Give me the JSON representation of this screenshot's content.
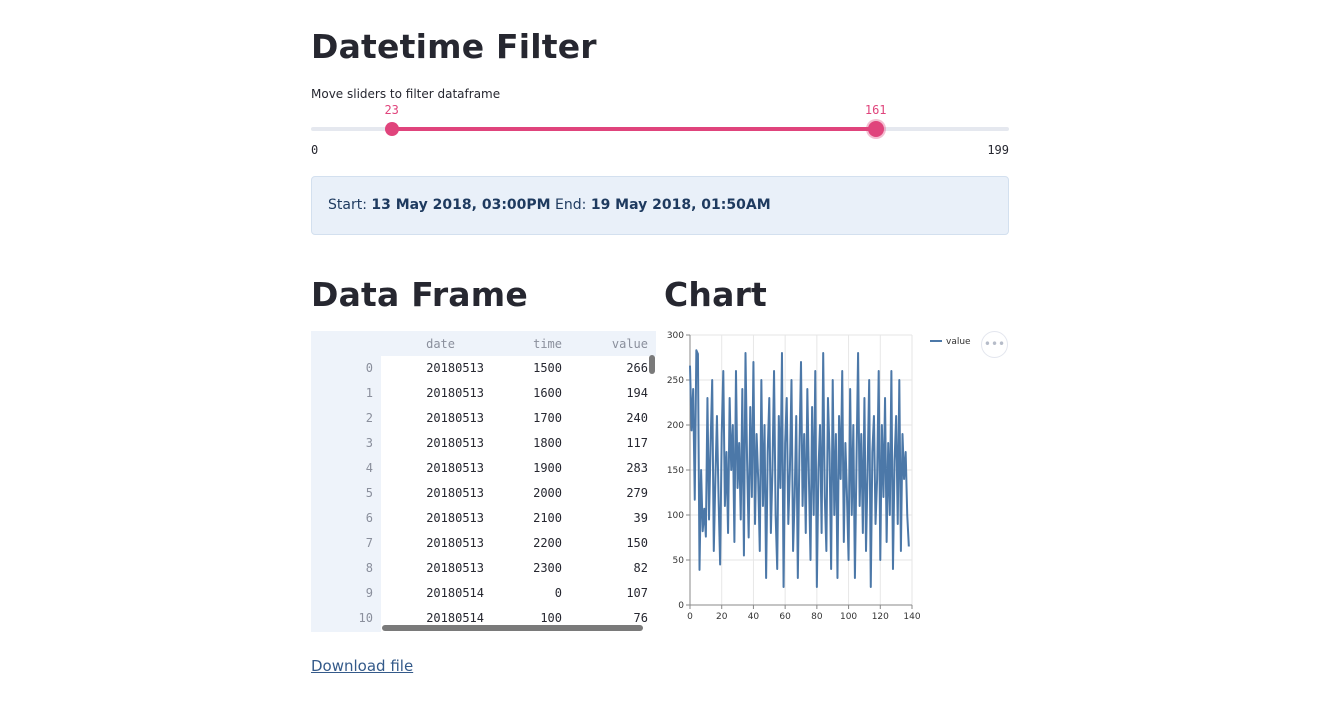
{
  "page": {
    "title": "Datetime Filter",
    "caption": "Move sliders to filter dataframe",
    "download_label": "Download file"
  },
  "slider": {
    "min": 0,
    "max": 199,
    "low": 23,
    "high": 161,
    "min_label": "0",
    "max_label": "199",
    "low_label": "23",
    "high_label": "161",
    "accent_color": "#e0447c"
  },
  "info": {
    "start_label": "Start:",
    "start_value": "13 May 2018, 03:00PM",
    "end_label": "End:",
    "end_value": "19 May 2018, 01:50AM"
  },
  "dataframe": {
    "heading": "Data Frame",
    "columns": [
      "date",
      "time",
      "value"
    ],
    "rows": [
      {
        "index": "0",
        "date": "20180513",
        "time": "1500",
        "value": "266"
      },
      {
        "index": "1",
        "date": "20180513",
        "time": "1600",
        "value": "194"
      },
      {
        "index": "2",
        "date": "20180513",
        "time": "1700",
        "value": "240"
      },
      {
        "index": "3",
        "date": "20180513",
        "time": "1800",
        "value": "117"
      },
      {
        "index": "4",
        "date": "20180513",
        "time": "1900",
        "value": "283"
      },
      {
        "index": "5",
        "date": "20180513",
        "time": "2000",
        "value": "279"
      },
      {
        "index": "6",
        "date": "20180513",
        "time": "2100",
        "value": "39"
      },
      {
        "index": "7",
        "date": "20180513",
        "time": "2200",
        "value": "150"
      },
      {
        "index": "8",
        "date": "20180513",
        "time": "2300",
        "value": "82"
      },
      {
        "index": "9",
        "date": "20180514",
        "time": "0",
        "value": "107"
      },
      {
        "index": "10",
        "date": "20180514",
        "time": "100",
        "value": "76"
      }
    ]
  },
  "chart": {
    "heading": "Chart",
    "menu_icon": "more-horizontal-icon",
    "menu_glyph": "•••"
  },
  "chart_data": {
    "type": "line",
    "title": "",
    "xlabel": "",
    "ylabel": "",
    "xlim": [
      0,
      140
    ],
    "ylim": [
      0,
      300
    ],
    "xticks": [
      0,
      20,
      40,
      60,
      80,
      100,
      120,
      140
    ],
    "yticks": [
      0,
      50,
      100,
      150,
      200,
      250,
      300
    ],
    "grid": true,
    "legend": "top-right",
    "series": [
      {
        "name": "value",
        "color": "#4c78a8",
        "x": [
          0,
          1,
          2,
          3,
          4,
          5,
          6,
          7,
          8,
          9,
          10,
          11,
          12,
          13,
          14,
          15,
          16,
          17,
          18,
          19,
          20,
          21,
          22,
          23,
          24,
          25,
          26,
          27,
          28,
          29,
          30,
          31,
          32,
          33,
          34,
          35,
          36,
          37,
          38,
          39,
          40,
          41,
          42,
          43,
          44,
          45,
          46,
          47,
          48,
          49,
          50,
          51,
          52,
          53,
          54,
          55,
          56,
          57,
          58,
          59,
          60,
          61,
          62,
          63,
          64,
          65,
          66,
          67,
          68,
          69,
          70,
          71,
          72,
          73,
          74,
          75,
          76,
          77,
          78,
          79,
          80,
          81,
          82,
          83,
          84,
          85,
          86,
          87,
          88,
          89,
          90,
          91,
          92,
          93,
          94,
          95,
          96,
          97,
          98,
          99,
          100,
          101,
          102,
          103,
          104,
          105,
          106,
          107,
          108,
          109,
          110,
          111,
          112,
          113,
          114,
          115,
          116,
          117,
          118,
          119,
          120,
          121,
          122,
          123,
          124,
          125,
          126,
          127,
          128,
          129,
          130,
          131,
          132,
          133,
          134,
          135,
          136,
          137,
          138
        ],
        "values": [
          266,
          194,
          240,
          117,
          283,
          279,
          39,
          150,
          82,
          107,
          76,
          230,
          95,
          180,
          250,
          60,
          140,
          210,
          120,
          45,
          190,
          260,
          110,
          170,
          80,
          230,
          150,
          200,
          70,
          260,
          130,
          180,
          95,
          240,
          55,
          280,
          160,
          75,
          220,
          120,
          270,
          90,
          190,
          140,
          60,
          250,
          110,
          200,
          30,
          170,
          230,
          80,
          150,
          260,
          100,
          40,
          210,
          130,
          280,
          20,
          180,
          230,
          90,
          150,
          250,
          60,
          120,
          210,
          30,
          170,
          270,
          110,
          190,
          80,
          240,
          140,
          50,
          220,
          100,
          260,
          20,
          150,
          200,
          80,
          280,
          120,
          60,
          230,
          170,
          40,
          250,
          100,
          190,
          30,
          210,
          140,
          260,
          70,
          180,
          120,
          50,
          240,
          100,
          200,
          30,
          160,
          280,
          110,
          190,
          80,
          230,
          60,
          150,
          250,
          20,
          170,
          210,
          90,
          140,
          260,
          50,
          200,
          120,
          230,
          70,
          180,
          100,
          260,
          40,
          160,
          210,
          90,
          250,
          60,
          190,
          140,
          170,
          100,
          65
        ]
      }
    ]
  }
}
